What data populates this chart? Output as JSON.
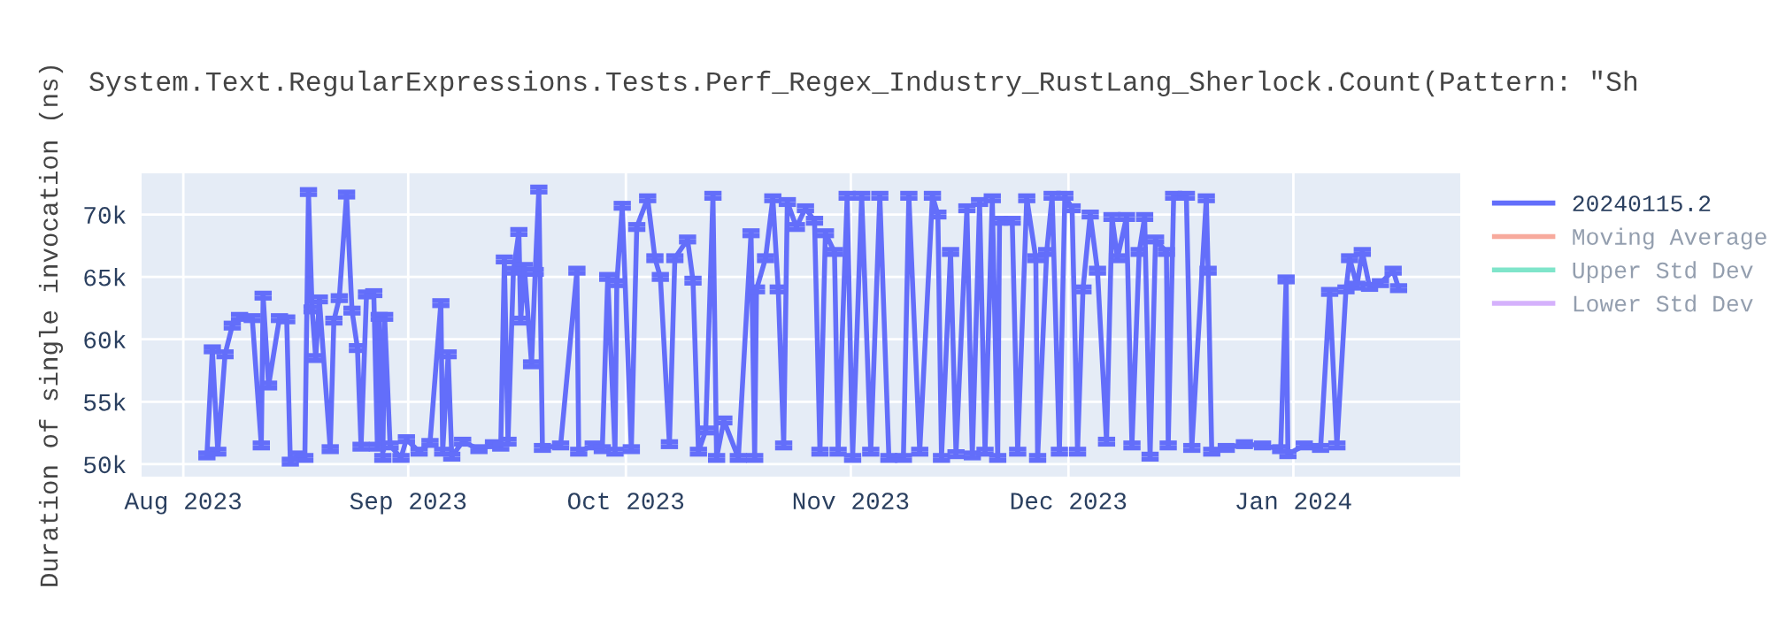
{
  "chart_data": {
    "type": "line",
    "title": "System.Text.RegularExpressions.Tests.Perf_Regex_Industry_RustLang_Sherlock.Count(Pattern: \"Sh",
    "ylabel": "Duration of single invocation (ns)",
    "xlim": [
      "2023-07-26T06:00",
      "2024-01-24T00:00"
    ],
    "xticks": [
      {
        "value": "2023-08-01",
        "label": "Aug 2023"
      },
      {
        "value": "2023-09-01",
        "label": "Sep 2023"
      },
      {
        "value": "2023-10-01",
        "label": "Oct 2023"
      },
      {
        "value": "2023-11-01",
        "label": "Nov 2023"
      },
      {
        "value": "2023-12-01",
        "label": "Dec 2023"
      },
      {
        "value": "2024-01-01",
        "label": "Jan 2024"
      }
    ],
    "ylim": [
      49000,
      73300
    ],
    "yticks": [
      {
        "value": 50000,
        "label": "50k"
      },
      {
        "value": 55000,
        "label": "55k"
      },
      {
        "value": 60000,
        "label": "60k"
      },
      {
        "value": 65000,
        "label": "65k"
      },
      {
        "value": 70000,
        "label": "70k"
      }
    ],
    "grid": true,
    "legend": "top right",
    "marker": "none",
    "line_style": "solid",
    "series": [
      {
        "name": "20240115.2",
        "color": "#636efa",
        "x": [
          "2023-08-04T06:00",
          "2023-08-05T00:00",
          "2023-08-05T18:00",
          "2023-08-06T18:00",
          "2023-08-07T18:00",
          "2023-08-08T18:00",
          "2023-08-10T12:00",
          "2023-08-11T18:00",
          "2023-08-12T00:00",
          "2023-08-12T18:00",
          "2023-08-14T06:00",
          "2023-08-15T06:00",
          "2023-08-15T18:00",
          "2023-08-16T18:00",
          "2023-08-17T18:00",
          "2023-08-18T06:00",
          "2023-08-18T18:00",
          "2023-08-19T06:00",
          "2023-08-19T18:00",
          "2023-08-21T06:00",
          "2023-08-21T18:00",
          "2023-08-22T12:00",
          "2023-08-23T12:00",
          "2023-08-24T06:00",
          "2023-08-25T00:00",
          "2023-08-25T12:00",
          "2023-08-26T06:00",
          "2023-08-27T06:00",
          "2023-08-27T18:00",
          "2023-08-28T00:00",
          "2023-08-28T12:00",
          "2023-08-28T18:00",
          "2023-08-29T12:00",
          "2023-08-31T00:00",
          "2023-08-31T18:00",
          "2023-09-02T12:00",
          "2023-09-04T00:00",
          "2023-09-05T12:00",
          "2023-09-05T18:00",
          "2023-09-06T12:00",
          "2023-09-07T00:00",
          "2023-09-08T12:00",
          "2023-09-10T18:00",
          "2023-09-12T18:00",
          "2023-09-13T18:00",
          "2023-09-14T06:00",
          "2023-09-14T18:00",
          "2023-09-15T12:00",
          "2023-09-16T06:00",
          "2023-09-16T12:00",
          "2023-09-17T00:00",
          "2023-09-18T00:00",
          "2023-09-18T12:00",
          "2023-09-19T00:00",
          "2023-09-19T12:00",
          "2023-09-22T00:00",
          "2023-09-24T06:00",
          "2023-09-24T12:00",
          "2023-09-26T12:00",
          "2023-09-27T18:00",
          "2023-09-28T12:00",
          "2023-09-29T12:00",
          "2023-09-29T18:00",
          "2023-09-30T12:00",
          "2023-10-01T18:00",
          "2023-10-02T12:00",
          "2023-10-04T00:00",
          "2023-10-05T00:00",
          "2023-10-05T18:00",
          "2023-10-07T00:00",
          "2023-10-07T18:00",
          "2023-10-09T12:00",
          "2023-10-10T06:00",
          "2023-10-11T00:00",
          "2023-10-12T00:00",
          "2023-10-13T00:00",
          "2023-10-13T12:00",
          "2023-10-14T12:00",
          "2023-10-16T12:00",
          "2023-10-18T06:00",
          "2023-10-18T18:00",
          "2023-10-19T00:00",
          "2023-10-20T06:00",
          "2023-10-21T06:00",
          "2023-10-22T00:00",
          "2023-10-22T18:00",
          "2023-10-23T06:00",
          "2023-10-24T12:00",
          "2023-10-25T18:00",
          "2023-10-27T00:00",
          "2023-10-27T18:00",
          "2023-10-28T12:00",
          "2023-10-29T18:00",
          "2023-10-30T06:00",
          "2023-10-31T12:00",
          "2023-11-01T06:00",
          "2023-11-02T12:00",
          "2023-11-03T18:00",
          "2023-11-05T00:00",
          "2023-11-06T06:00",
          "2023-11-08T06:00",
          "2023-11-09T00:00",
          "2023-11-10T12:00",
          "2023-11-12T06:00",
          "2023-11-13T00:00",
          "2023-11-13T12:00",
          "2023-11-14T18:00",
          "2023-11-15T12:00",
          "2023-11-17T00:00",
          "2023-11-17T18:00",
          "2023-11-18T18:00",
          "2023-11-19T12:00",
          "2023-11-20T12:00",
          "2023-11-21T06:00",
          "2023-11-21T12:00",
          "2023-11-23T06:00",
          "2023-11-24T00:00",
          "2023-11-25T06:00",
          "2023-11-26T12:00",
          "2023-11-26T18:00",
          "2023-11-28T00:00",
          "2023-11-28T18:00",
          "2023-11-29T18:00",
          "2023-11-30T12:00",
          "2023-12-01T12:00",
          "2023-12-02T06:00",
          "2023-12-03T00:00",
          "2023-12-04T00:00",
          "2023-12-05T00:00",
          "2023-12-06T06:00",
          "2023-12-07T00:00",
          "2023-12-07T18:00",
          "2023-12-09T00:00",
          "2023-12-09T18:00",
          "2023-12-10T18:00",
          "2023-12-11T12:00",
          "2023-12-12T06:00",
          "2023-12-13T00:00",
          "2023-12-14T12:00",
          "2023-12-14T18:00",
          "2023-12-15T12:00",
          "2023-12-17T06:00",
          "2023-12-18T00:00",
          "2023-12-20T00:00",
          "2023-12-20T06:00",
          "2023-12-20T18:00",
          "2023-12-22T18:00",
          "2023-12-25T06:00",
          "2023-12-27T18:00",
          "2023-12-30T06:00",
          "2023-12-31T00:00",
          "2023-12-31T06:00",
          "2024-01-02T12:00",
          "2024-01-04T18:00",
          "2024-01-06T00:00",
          "2024-01-07T00:00",
          "2024-01-08T06:00",
          "2024-01-08T18:00",
          "2024-01-09T18:00",
          "2024-01-10T12:00",
          "2024-01-11T12:00",
          "2024-01-13T00:00",
          "2024-01-14T18:00",
          "2024-01-15T12:00"
        ],
        "values": [
          50700,
          59200,
          51000,
          58800,
          61100,
          61800,
          61700,
          51500,
          63500,
          56300,
          61700,
          61600,
          50200,
          50700,
          50500,
          71800,
          62400,
          58500,
          63200,
          51200,
          61500,
          63300,
          71600,
          62300,
          59300,
          51400,
          63600,
          63700,
          51400,
          61800,
          50500,
          61800,
          51500,
          50500,
          52000,
          51000,
          51700,
          62900,
          51000,
          58800,
          50600,
          51800,
          51200,
          51600,
          51400,
          66400,
          51800,
          65500,
          68600,
          61500,
          65800,
          58000,
          65400,
          72000,
          51300,
          51500,
          65500,
          51000,
          51500,
          51200,
          65000,
          51000,
          64500,
          70700,
          51200,
          69000,
          71300,
          66500,
          65000,
          51600,
          66500,
          68000,
          64700,
          51000,
          52700,
          71500,
          50500,
          53500,
          50500,
          68500,
          50500,
          64000,
          66500,
          71300,
          64000,
          51500,
          71000,
          69000,
          70500,
          69500,
          51000,
          68500,
          67000,
          51000,
          71500,
          50500,
          71500,
          51000,
          71500,
          50500,
          50500,
          71500,
          51000,
          71500,
          70000,
          50500,
          67000,
          50800,
          70500,
          50700,
          71000,
          51000,
          71300,
          50500,
          69500,
          69500,
          51000,
          71300,
          66500,
          50500,
          67000,
          71500,
          51000,
          71500,
          70500,
          51000,
          64000,
          70000,
          65500,
          51800,
          69800,
          66500,
          69800,
          51500,
          67000,
          69800,
          50600,
          68000,
          67000,
          51500,
          71500,
          71500,
          51300,
          71300,
          65500,
          51000,
          51300,
          51600,
          51500,
          51200,
          64800,
          50800,
          51500,
          51300,
          63800,
          51500,
          64000,
          66500,
          64300,
          67000,
          64200,
          64500,
          65500,
          64100
        ],
        "errors": [
          200,
          200,
          200,
          200,
          200,
          200,
          200,
          200,
          200,
          200,
          200,
          200,
          200,
          200,
          200,
          200,
          200,
          200,
          200,
          200,
          200,
          200,
          200,
          200,
          200,
          200,
          200,
          200,
          200,
          200,
          200,
          200,
          200,
          200,
          200,
          200,
          200,
          200,
          200,
          200,
          200,
          200,
          200,
          200,
          200,
          200,
          200,
          200,
          200,
          200,
          200,
          200,
          200,
          200,
          200,
          200,
          200,
          200,
          200,
          200,
          200,
          200,
          200,
          200,
          200,
          200,
          200,
          200,
          200,
          200,
          200,
          200,
          200,
          200,
          200,
          200,
          200,
          200,
          200,
          200,
          200,
          200,
          200,
          200,
          200,
          200,
          200,
          200,
          200,
          200,
          200,
          200,
          200,
          200,
          200,
          200,
          200,
          200,
          200,
          200,
          200,
          200,
          200,
          200,
          200,
          200,
          200,
          200,
          200,
          200,
          200,
          200,
          200,
          200,
          200,
          200,
          200,
          200,
          200,
          200,
          200,
          200,
          200,
          200,
          200,
          200,
          200,
          200,
          200,
          200,
          200,
          200,
          200,
          200,
          200,
          200,
          200,
          200,
          200,
          200,
          200,
          200,
          200,
          200,
          200,
          200,
          200,
          200,
          200,
          200,
          200,
          200,
          200,
          200,
          200,
          200,
          200,
          200,
          200,
          200,
          200,
          200,
          200,
          200
        ]
      },
      {
        "name": "Moving Average",
        "color": "#ef553b"
      },
      {
        "name": "Upper Std Dev",
        "color": "#00cc96"
      },
      {
        "name": "Lower Std Dev",
        "color": "#ab63fa"
      }
    ]
  }
}
